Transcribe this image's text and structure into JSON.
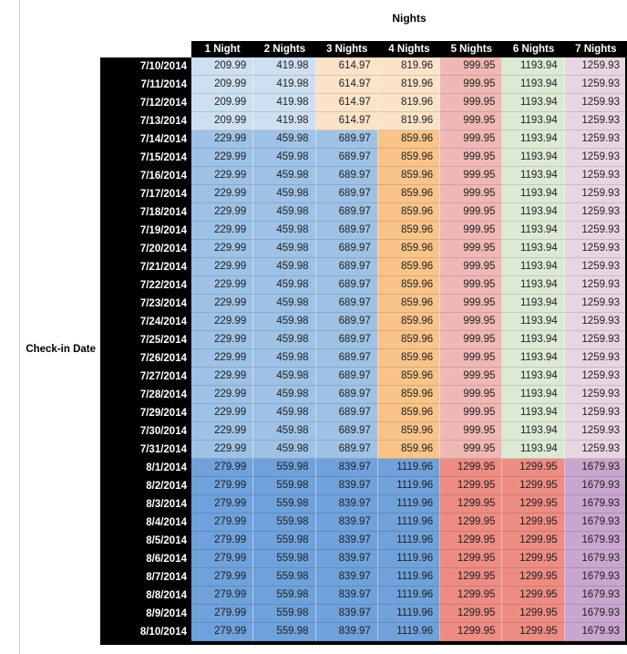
{
  "chart_data": {
    "type": "table",
    "title": "Nights",
    "row_label": "Check-in Date",
    "columns": [
      "1 Night",
      "2 Nights",
      "3 Nights",
      "4 Nights",
      "5 Nights",
      "6 Nights",
      "7 Nights"
    ],
    "palette": {
      "light_blue": "#CEDFF1",
      "med_blue": "#9EC2E5",
      "aug_blue": "#6FA1DB",
      "light_orange": "#FAE3C7",
      "orange": "#F9C489",
      "pink": "#EFB8B5",
      "light_green": "#DCEAD3",
      "light_purple": "#E8D5E2",
      "red": "#ED8C83",
      "aug_purple": "#C9A6CD",
      "header_bg": "#000000",
      "header_text": "#FFFFFF",
      "cell_text": "#1F1F1F"
    },
    "bands": {
      "early_july": [
        "light_blue",
        "light_blue",
        "light_orange",
        "light_orange",
        "pink",
        "light_green",
        "light_purple"
      ],
      "mid_july": [
        "med_blue",
        "med_blue",
        "med_blue",
        "orange",
        "pink",
        "light_green",
        "light_purple"
      ],
      "august": [
        "aug_blue",
        "aug_blue",
        "aug_blue",
        "aug_blue",
        "red",
        "red",
        "aug_purple"
      ]
    },
    "rows": [
      {
        "date": "7/10/2014",
        "band": "early_july",
        "values": [
          209.99,
          419.98,
          614.97,
          819.96,
          999.95,
          1193.94,
          1259.93
        ]
      },
      {
        "date": "7/11/2014",
        "band": "early_july",
        "values": [
          209.99,
          419.98,
          614.97,
          819.96,
          999.95,
          1193.94,
          1259.93
        ]
      },
      {
        "date": "7/12/2014",
        "band": "early_july",
        "values": [
          209.99,
          419.98,
          614.97,
          819.96,
          999.95,
          1193.94,
          1259.93
        ]
      },
      {
        "date": "7/13/2014",
        "band": "early_july",
        "values": [
          209.99,
          419.98,
          614.97,
          819.96,
          999.95,
          1193.94,
          1259.93
        ]
      },
      {
        "date": "7/14/2014",
        "band": "mid_july",
        "values": [
          229.99,
          459.98,
          689.97,
          859.96,
          999.95,
          1193.94,
          1259.93
        ]
      },
      {
        "date": "7/15/2014",
        "band": "mid_july",
        "values": [
          229.99,
          459.98,
          689.97,
          859.96,
          999.95,
          1193.94,
          1259.93
        ]
      },
      {
        "date": "7/16/2014",
        "band": "mid_july",
        "values": [
          229.99,
          459.98,
          689.97,
          859.96,
          999.95,
          1193.94,
          1259.93
        ]
      },
      {
        "date": "7/17/2014",
        "band": "mid_july",
        "values": [
          229.99,
          459.98,
          689.97,
          859.96,
          999.95,
          1193.94,
          1259.93
        ]
      },
      {
        "date": "7/18/2014",
        "band": "mid_july",
        "values": [
          229.99,
          459.98,
          689.97,
          859.96,
          999.95,
          1193.94,
          1259.93
        ]
      },
      {
        "date": "7/19/2014",
        "band": "mid_july",
        "values": [
          229.99,
          459.98,
          689.97,
          859.96,
          999.95,
          1193.94,
          1259.93
        ]
      },
      {
        "date": "7/20/2014",
        "band": "mid_july",
        "values": [
          229.99,
          459.98,
          689.97,
          859.96,
          999.95,
          1193.94,
          1259.93
        ]
      },
      {
        "date": "7/21/2014",
        "band": "mid_july",
        "values": [
          229.99,
          459.98,
          689.97,
          859.96,
          999.95,
          1193.94,
          1259.93
        ]
      },
      {
        "date": "7/22/2014",
        "band": "mid_july",
        "values": [
          229.99,
          459.98,
          689.97,
          859.96,
          999.95,
          1193.94,
          1259.93
        ]
      },
      {
        "date": "7/23/2014",
        "band": "mid_july",
        "values": [
          229.99,
          459.98,
          689.97,
          859.96,
          999.95,
          1193.94,
          1259.93
        ]
      },
      {
        "date": "7/24/2014",
        "band": "mid_july",
        "values": [
          229.99,
          459.98,
          689.97,
          859.96,
          999.95,
          1193.94,
          1259.93
        ]
      },
      {
        "date": "7/25/2014",
        "band": "mid_july",
        "values": [
          229.99,
          459.98,
          689.97,
          859.96,
          999.95,
          1193.94,
          1259.93
        ]
      },
      {
        "date": "7/26/2014",
        "band": "mid_july",
        "values": [
          229.99,
          459.98,
          689.97,
          859.96,
          999.95,
          1193.94,
          1259.93
        ]
      },
      {
        "date": "7/27/2014",
        "band": "mid_july",
        "values": [
          229.99,
          459.98,
          689.97,
          859.96,
          999.95,
          1193.94,
          1259.93
        ]
      },
      {
        "date": "7/28/2014",
        "band": "mid_july",
        "values": [
          229.99,
          459.98,
          689.97,
          859.96,
          999.95,
          1193.94,
          1259.93
        ]
      },
      {
        "date": "7/29/2014",
        "band": "mid_july",
        "values": [
          229.99,
          459.98,
          689.97,
          859.96,
          999.95,
          1193.94,
          1259.93
        ]
      },
      {
        "date": "7/30/2014",
        "band": "mid_july",
        "values": [
          229.99,
          459.98,
          689.97,
          859.96,
          999.95,
          1193.94,
          1259.93
        ]
      },
      {
        "date": "7/31/2014",
        "band": "mid_july",
        "values": [
          229.99,
          459.98,
          689.97,
          859.96,
          999.95,
          1193.94,
          1259.93
        ]
      },
      {
        "date": "8/1/2014",
        "band": "august",
        "values": [
          279.99,
          559.98,
          839.97,
          1119.96,
          1299.95,
          1299.95,
          1679.93
        ]
      },
      {
        "date": "8/2/2014",
        "band": "august",
        "values": [
          279.99,
          559.98,
          839.97,
          1119.96,
          1299.95,
          1299.95,
          1679.93
        ]
      },
      {
        "date": "8/3/2014",
        "band": "august",
        "values": [
          279.99,
          559.98,
          839.97,
          1119.96,
          1299.95,
          1299.95,
          1679.93
        ]
      },
      {
        "date": "8/4/2014",
        "band": "august",
        "values": [
          279.99,
          559.98,
          839.97,
          1119.96,
          1299.95,
          1299.95,
          1679.93
        ]
      },
      {
        "date": "8/5/2014",
        "band": "august",
        "values": [
          279.99,
          559.98,
          839.97,
          1119.96,
          1299.95,
          1299.95,
          1679.93
        ]
      },
      {
        "date": "8/6/2014",
        "band": "august",
        "values": [
          279.99,
          559.98,
          839.97,
          1119.96,
          1299.95,
          1299.95,
          1679.93
        ]
      },
      {
        "date": "8/7/2014",
        "band": "august",
        "values": [
          279.99,
          559.98,
          839.97,
          1119.96,
          1299.95,
          1299.95,
          1679.93
        ]
      },
      {
        "date": "8/8/2014",
        "band": "august",
        "values": [
          279.99,
          559.98,
          839.97,
          1119.96,
          1299.95,
          1299.95,
          1679.93
        ]
      },
      {
        "date": "8/9/2014",
        "band": "august",
        "values": [
          279.99,
          559.98,
          839.97,
          1119.96,
          1299.95,
          1299.95,
          1679.93
        ]
      },
      {
        "date": "8/10/2014",
        "band": "august",
        "values": [
          279.99,
          559.98,
          839.97,
          1119.96,
          1299.95,
          1299.95,
          1679.93
        ]
      }
    ]
  }
}
